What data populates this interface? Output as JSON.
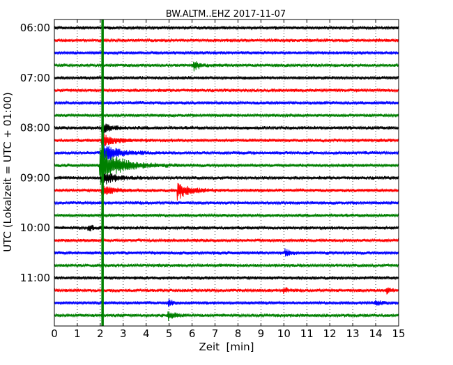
{
  "chart_data": {
    "type": "line",
    "title": "BW.ALTM..EHZ 2017-11-07",
    "xlabel": "Zeit  [min]",
    "ylabel": "UTC (Lokalzeit = UTC + 01:00)",
    "xlim": [
      0,
      15
    ],
    "x_ticks": [
      0,
      1,
      2,
      3,
      4,
      5,
      6,
      7,
      8,
      9,
      10,
      11,
      12,
      13,
      14,
      15
    ],
    "x_tick_labels": [
      "0",
      "1",
      "2",
      "3",
      "4",
      "5",
      "6",
      "7",
      "8",
      "9",
      "10",
      "11",
      "12",
      "13",
      "14",
      "15"
    ],
    "y_tick_labels": [
      "06:00",
      "07:00",
      "08:00",
      "09:00",
      "10:00",
      "11:00"
    ],
    "y_tick_label_trace_index": [
      0,
      4,
      8,
      12,
      16,
      20
    ],
    "trace_interval_minutes": 15,
    "trace_colors": [
      "#000000",
      "#ff0000",
      "#0000ff",
      "#008000"
    ],
    "grid": "vertical-dotted",
    "traces": [
      {
        "start": "06:00",
        "color": "#000000"
      },
      {
        "start": "06:15",
        "color": "#ff0000"
      },
      {
        "start": "06:30",
        "color": "#0000ff"
      },
      {
        "start": "06:45",
        "color": "#008000",
        "events": [
          {
            "x": 6.1,
            "amplitude": 0.7,
            "decay": 0.25
          }
        ]
      },
      {
        "start": "07:00",
        "color": "#000000"
      },
      {
        "start": "07:15",
        "color": "#ff0000"
      },
      {
        "start": "07:30",
        "color": "#0000ff"
      },
      {
        "start": "07:45",
        "color": "#008000"
      },
      {
        "start": "08:00",
        "color": "#000000",
        "events": [
          {
            "x": 2.1,
            "amplitude": 0.8,
            "decay": 0.4
          }
        ]
      },
      {
        "start": "08:15",
        "color": "#ff0000",
        "events": [
          {
            "x": 2.1,
            "amplitude": 1.0,
            "decay": 0.5
          }
        ]
      },
      {
        "start": "08:30",
        "color": "#0000ff",
        "events": [
          {
            "x": 2.1,
            "amplitude": 1.6,
            "decay": 0.6
          }
        ]
      },
      {
        "start": "08:45",
        "color": "#008000",
        "events": [
          {
            "x": 2.0,
            "amplitude": 3.0,
            "decay": 0.8
          }
        ]
      },
      {
        "start": "09:00",
        "color": "#000000",
        "events": [
          {
            "x": 2.1,
            "amplitude": 1.2,
            "decay": 0.5
          }
        ]
      },
      {
        "start": "09:15",
        "color": "#ff0000",
        "events": [
          {
            "x": 2.1,
            "amplitude": 0.8,
            "decay": 0.4
          },
          {
            "x": 5.4,
            "amplitude": 1.3,
            "decay": 0.5
          }
        ]
      },
      {
        "start": "09:30",
        "color": "#0000ff"
      },
      {
        "start": "09:45",
        "color": "#008000"
      },
      {
        "start": "10:00",
        "color": "#000000",
        "events": [
          {
            "x": 1.5,
            "amplitude": 0.5,
            "decay": 0.2
          }
        ]
      },
      {
        "start": "10:15",
        "color": "#ff0000"
      },
      {
        "start": "10:30",
        "color": "#0000ff",
        "events": [
          {
            "x": 10.1,
            "amplitude": 0.5,
            "decay": 0.2
          }
        ]
      },
      {
        "start": "10:45",
        "color": "#008000"
      },
      {
        "start": "11:00",
        "color": "#000000"
      },
      {
        "start": "11:15",
        "color": "#ff0000",
        "events": [
          {
            "x": 10.0,
            "amplitude": 0.4,
            "decay": 0.2
          },
          {
            "x": 14.5,
            "amplitude": 0.4,
            "decay": 0.2
          }
        ]
      },
      {
        "start": "11:30",
        "color": "#0000ff",
        "events": [
          {
            "x": 5.0,
            "amplitude": 0.4,
            "decay": 0.2
          },
          {
            "x": 14.0,
            "amplitude": 0.4,
            "decay": 0.2
          }
        ]
      },
      {
        "start": "11:45",
        "color": "#008000",
        "events": [
          {
            "x": 5.0,
            "amplitude": 0.6,
            "decay": 0.25
          }
        ]
      }
    ],
    "vertical_marker": {
      "x": 2.1,
      "color": "#008000"
    }
  }
}
